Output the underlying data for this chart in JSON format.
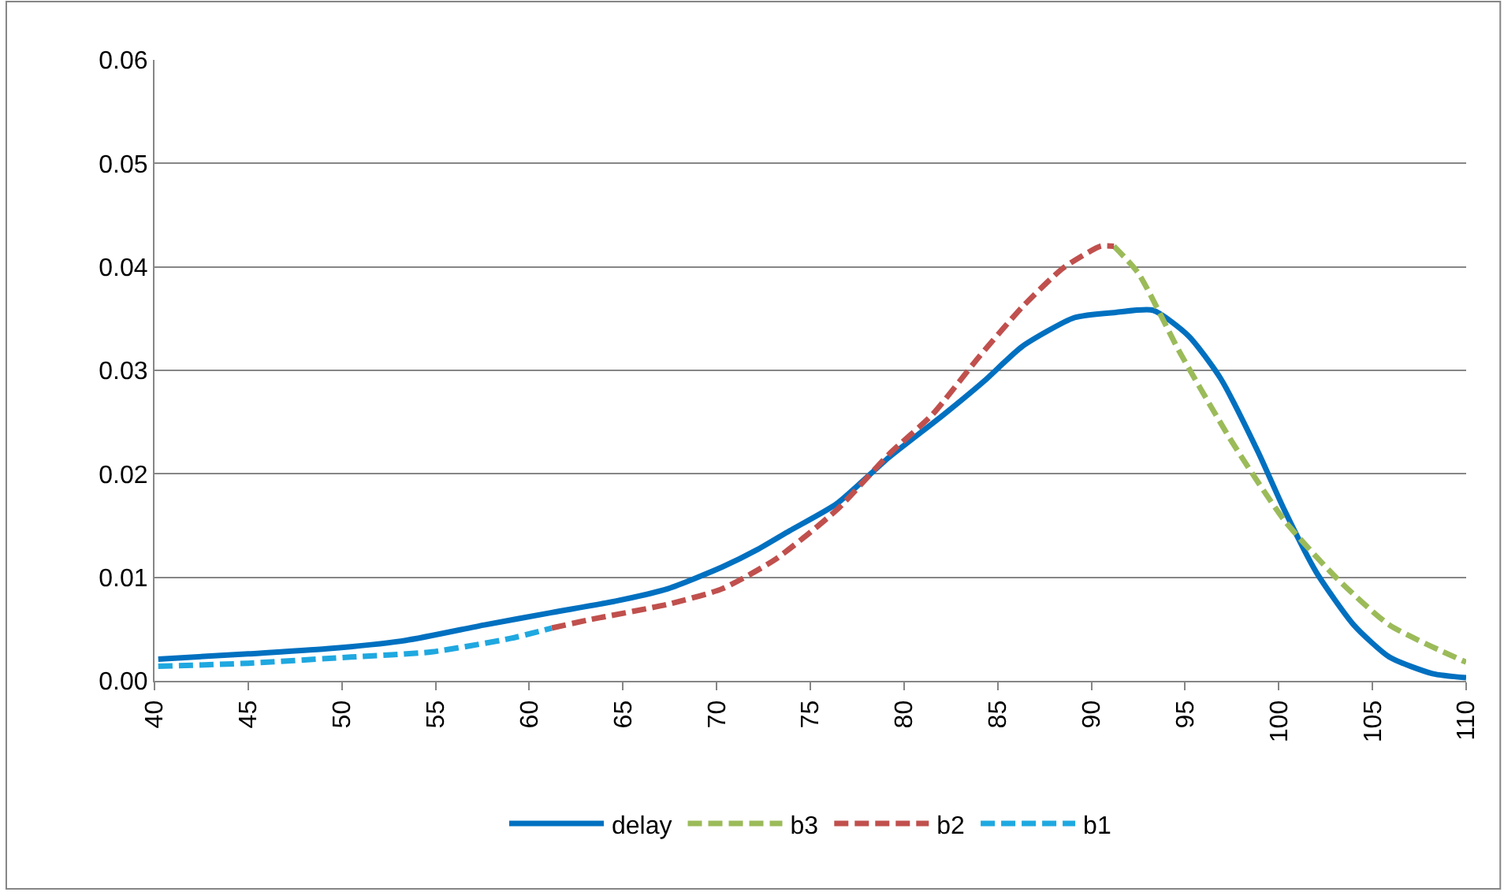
{
  "chart_data": {
    "type": "line",
    "xlim": [
      40,
      110
    ],
    "xticks": [
      40,
      45,
      50,
      55,
      60,
      65,
      70,
      75,
      80,
      85,
      90,
      95,
      100,
      105,
      110
    ],
    "ylim": [
      0,
      0.06
    ],
    "yticks": [
      {
        "value": 0,
        "label": "0.00"
      },
      {
        "value": 0.01,
        "label": "0.01"
      },
      {
        "value": 0.02,
        "label": "0.02"
      },
      {
        "value": 0.03,
        "label": "0.03"
      },
      {
        "value": 0.04,
        "label": "0.04"
      },
      {
        "value": 0.05,
        "label": "0.05"
      },
      {
        "value": 0.06,
        "label": "0.06"
      }
    ],
    "grid": "y",
    "legend": "bottom",
    "marker": "none",
    "series": [
      {
        "name": "delay",
        "color": "#0070c0",
        "line_style": "solid",
        "x": [
          40.2,
          45,
          49.2,
          53.4,
          57.6,
          61.2,
          64.6,
          67.4,
          70.3,
          72.2,
          73.9,
          76.4,
          79.2,
          82.1,
          84.3,
          86.3,
          89.1,
          91.3,
          93.3,
          95.2,
          96.9,
          98.9,
          100.3,
          102,
          104,
          105.9,
          108.2,
          110
        ],
        "values": [
          0.0021,
          0.0026,
          0.0031,
          0.0039,
          0.0054,
          0.0066,
          0.0077,
          0.0089,
          0.011,
          0.0127,
          0.0145,
          0.0171,
          0.0216,
          0.0257,
          0.029,
          0.0323,
          0.0351,
          0.0356,
          0.0358,
          0.0333,
          0.0292,
          0.0221,
          0.0165,
          0.0105,
          0.0054,
          0.0023,
          0.0007,
          0.0003
        ]
      },
      {
        "name": "b3",
        "color": "#9bbb59",
        "line_style": "dashed",
        "x": [
          91.2,
          92.5,
          94.7,
          97.5,
          100.3,
          103.1,
          105.9,
          110
        ],
        "values": [
          0.042,
          0.0394,
          0.0318,
          0.0231,
          0.0155,
          0.0099,
          0.0054,
          0.0018
        ]
      },
      {
        "name": "b2",
        "color": "#c0504d",
        "line_style": "dashed",
        "x": [
          61.2,
          63.2,
          67.4,
          70.3,
          73.1,
          76.4,
          79.2,
          81.5,
          84,
          86.3,
          88.5,
          90.5,
          91.2
        ],
        "values": [
          0.0051,
          0.0059,
          0.0074,
          0.0089,
          0.0117,
          0.0165,
          0.0219,
          0.0257,
          0.0313,
          0.0361,
          0.0399,
          0.042,
          0.042
        ]
      },
      {
        "name": "b1",
        "color": "#1fa8e0",
        "line_style": "dashed",
        "x": [
          40.2,
          45,
          50.5,
          54.8,
          59,
          61.2
        ],
        "values": [
          0.0014,
          0.0017,
          0.0023,
          0.0028,
          0.0041,
          0.0051
        ]
      }
    ]
  }
}
